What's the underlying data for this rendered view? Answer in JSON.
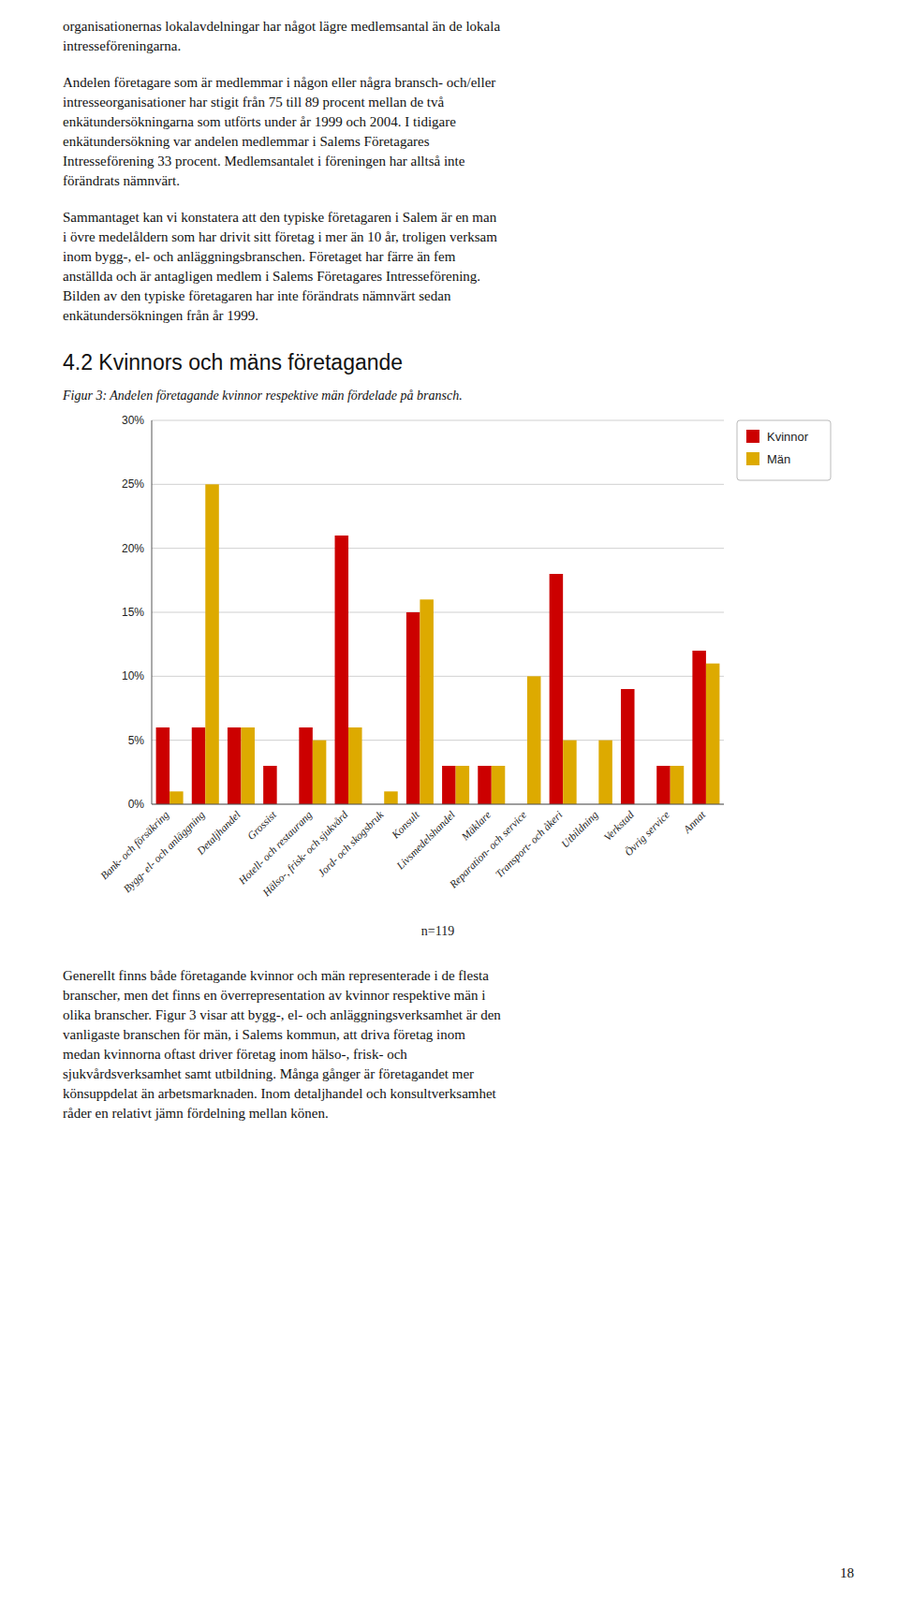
{
  "text_before": [
    "organisationernas lokalavdelningar har något lägre medlemsantal än de lokala\nintresseföreningarna.",
    "Andelen företagare som är medlemmar i någon eller några bransch- och/eller\nintresseorganisationer har stigit från 75 till 89 procent mellan de två\nenkätundersökningarna som utförts under år 1999 och 2004. I tidigare\nenkätundersökning var andelen medlemmar i Salems Företagares\nIntresseförening 33 procent. Medlemsantalet i föreningen har alltså inte\nförändrats nämnvärt.",
    "Sammantaget kan vi konstatera att den typiske företagaren i Salem är en man\ni övre medelåldern som har drivit sitt företag i mer än 10 år, troligen verksam\ninom bygg-, el- och anläggningsbranschen. Företaget har färre än fem\nanställda och är antagligen medlem i Salems Företagares Intresseförening.\nBilden av den typiske företagaren har inte förändrats nämnvärt sedan\nenkätundersökningen från år 1999."
  ],
  "section_title": "4.2 Kvinnors och mäns företagande",
  "text_after": [
    "Generellt finns både företagande kvinnor och män representerade i de flesta\nbranscher, men det finns en överrepresentation av kvinnor respektive män i\nolika branscher. Figur 3 visar att bygg-, el- och anläggningsverksamhet är den\nvanligaste branschen för män, i Salems kommun, att driva företag inom\nmedan kvinnorna oftast driver företag inom hälso-, frisk- och\nsjukvårdsverksamhet samt utbildning. Många gånger är företagandet mer\nkönsuppdelat än arbetsmarknaden. Inom detaljhandel och konsultverksamhet\nråder en relativt jämn fördelning mellan könen."
  ],
  "page_number": "18",
  "chart_data": {
    "type": "bar",
    "title": "Figur 3: Andelen företagande kvinnor respektive män fördelade på bransch.",
    "xlabel": "n=119",
    "categories": [
      "Bank- och försäkring",
      "Bygg- el- och anläggning",
      "Detaljhandel",
      "Grossist",
      "Hotell- och restaurang",
      "Hälso-, frisk- och sjukvård",
      "Jord- och skogsbruk",
      "Konsult",
      "Livsmedelshandel",
      "Mäklare",
      "Reparation- och service",
      "Transport- och åkeri",
      "Utbildning",
      "Verkstad",
      "Övrig service",
      "Annat"
    ],
    "series": [
      {
        "name": "Kvinnor",
        "color": "#cc0000",
        "values": [
          6,
          6,
          6,
          3,
          6,
          21,
          0,
          15,
          3,
          3,
          0,
          18,
          0,
          9,
          3,
          12
        ]
      },
      {
        "name": "Män",
        "color": "#ddaa00",
        "values": [
          1,
          25,
          6,
          0,
          5,
          6,
          1,
          16,
          3,
          3,
          10,
          5,
          5,
          0,
          3,
          11
        ]
      }
    ],
    "ylim": [
      0,
      30
    ],
    "yticks": [
      {
        "value": 0,
        "label": "0%"
      },
      {
        "value": 5,
        "label": "5%"
      },
      {
        "value": 10,
        "label": "10%"
      },
      {
        "value": 15,
        "label": "15%"
      },
      {
        "value": 20,
        "label": "20%"
      },
      {
        "value": 25,
        "label": "25%"
      },
      {
        "value": 30,
        "label": "30%"
      }
    ],
    "grid": true,
    "legend": "right"
  }
}
